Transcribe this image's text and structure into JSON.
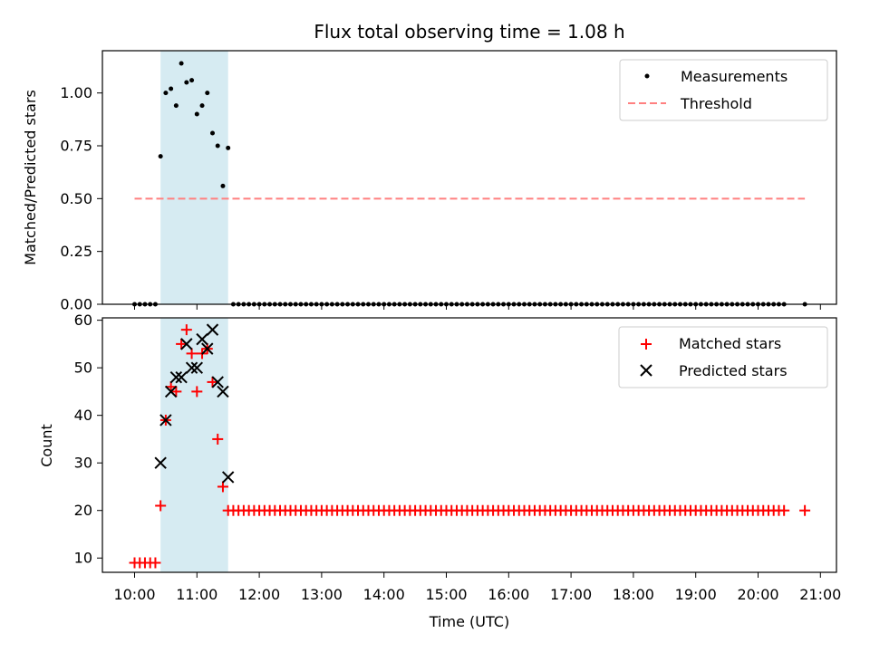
{
  "title": "Flux total observing time = 1.08 h",
  "chart_data": [
    {
      "type": "scatter",
      "ylabel": "Matched/Predicted stars",
      "xlabel": "",
      "ylim": [
        0,
        1.2
      ],
      "yticks": [
        0.0,
        0.25,
        0.5,
        0.75,
        1.0
      ],
      "ytick_labels": [
        "0.00",
        "0.25",
        "0.50",
        "0.75",
        "1.00"
      ],
      "legend_position": "top-right",
      "shaded_region": {
        "x_start": "10:25",
        "x_end": "11:30",
        "color": "#add8e6"
      },
      "series": [
        {
          "name": "Measurements",
          "marker": "dot",
          "color": "#000000",
          "x": [
            "10:25",
            "10:30",
            "10:35",
            "10:40",
            "10:45",
            "10:50",
            "10:55",
            "11:00",
            "11:05",
            "11:10",
            "11:15",
            "11:20",
            "11:25",
            "11:30"
          ],
          "y": [
            0.7,
            1.0,
            1.02,
            0.94,
            1.14,
            1.05,
            1.06,
            0.9,
            0.94,
            1.0,
            0.81,
            0.75,
            0.56,
            0.74
          ]
        },
        {
          "name": "Measurements (zero)",
          "marker": "dot",
          "color": "#000000",
          "x_range": [
            "10:00",
            "10:20",
            "11:35",
            "20:25"
          ],
          "x_step_minutes": 5,
          "extra_x": [
            "20:45"
          ],
          "y": 0
        },
        {
          "name": "Threshold",
          "style": "dashed",
          "color": "#ff8080",
          "x": [
            "10:00",
            "20:45"
          ],
          "y": [
            0.5,
            0.5
          ]
        }
      ]
    },
    {
      "type": "scatter",
      "ylabel": "Count",
      "xlabel": "Time (UTC)",
      "ylim": [
        7,
        60.5
      ],
      "yticks": [
        10,
        20,
        30,
        40,
        50,
        60
      ],
      "ytick_labels": [
        "10",
        "20",
        "30",
        "40",
        "50",
        "60"
      ],
      "xticks": [
        "10:00",
        "11:00",
        "12:00",
        "13:00",
        "14:00",
        "15:00",
        "16:00",
        "17:00",
        "18:00",
        "19:00",
        "20:00",
        "21:00"
      ],
      "legend_position": "top-right",
      "shaded_region": {
        "x_start": "10:25",
        "x_end": "11:30",
        "color": "#add8e6"
      },
      "series": [
        {
          "name": "Matched stars",
          "marker": "plus",
          "color": "#ff0000",
          "x": [
            "10:00",
            "10:05",
            "10:10",
            "10:15",
            "10:20",
            "10:25",
            "10:30",
            "10:35",
            "10:40",
            "10:45",
            "10:50",
            "10:55",
            "11:00",
            "11:05",
            "11:10",
            "11:15",
            "11:20",
            "11:25",
            "11:30"
          ],
          "y": [
            9,
            9,
            9,
            9,
            9,
            21,
            39,
            46,
            45,
            55,
            58,
            53,
            45,
            53,
            54,
            47,
            35,
            25,
            20
          ],
          "tail": {
            "x_range": [
              "11:35",
              "20:25"
            ],
            "x_step_minutes": 5,
            "extra_x": [
              "20:45"
            ],
            "y": 20
          }
        },
        {
          "name": "Predicted stars",
          "marker": "x",
          "color": "#000000",
          "x": [
            "10:25",
            "10:30",
            "10:35",
            "10:40",
            "10:45",
            "10:50",
            "10:55",
            "11:00",
            "11:05",
            "11:10",
            "11:15",
            "11:20",
            "11:25",
            "11:30"
          ],
          "y": [
            30,
            39,
            45,
            48,
            48,
            55,
            50,
            50,
            56,
            54,
            58,
            47,
            45,
            27
          ]
        }
      ]
    }
  ]
}
